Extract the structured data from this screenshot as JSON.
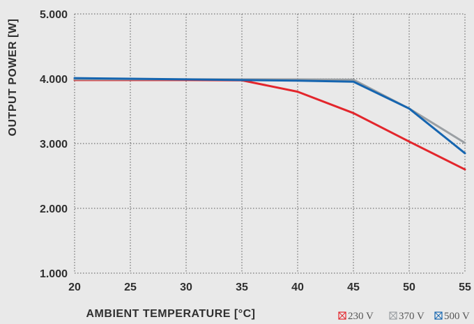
{
  "chart_data": {
    "type": "line",
    "xlabel": "AMBIENT TEMPERATURE [°C]",
    "ylabel": "OUTPUT POWER [W]",
    "x": [
      20,
      25,
      30,
      35,
      40,
      45,
      50,
      55
    ],
    "xlim": [
      20,
      55
    ],
    "ylim": [
      1000,
      5000
    ],
    "x_ticks": [
      "20",
      "25",
      "30",
      "35",
      "40",
      "45",
      "50",
      "55"
    ],
    "y_ticks": [
      {
        "value": 1000,
        "label": "1.000"
      },
      {
        "value": 2000,
        "label": "2.000"
      },
      {
        "value": 3000,
        "label": "3.000"
      },
      {
        "value": 4000,
        "label": "4.000"
      },
      {
        "value": 5000,
        "label": "5.000"
      }
    ],
    "grid": true,
    "legend_position": "bottom-right",
    "series": [
      {
        "name": "230 V",
        "color": "#e3262c",
        "values": [
          3980,
          3980,
          3980,
          3975,
          3800,
          3470,
          3030,
          2600
        ]
      },
      {
        "name": "370 V",
        "color": "#9a9fa3",
        "values": [
          3990,
          3990,
          3990,
          3990,
          3990,
          3985,
          3540,
          3010
        ]
      },
      {
        "name": "500 V",
        "color": "#1565b0",
        "values": [
          4010,
          4000,
          3990,
          3980,
          3970,
          3955,
          3540,
          2850
        ]
      }
    ]
  }
}
